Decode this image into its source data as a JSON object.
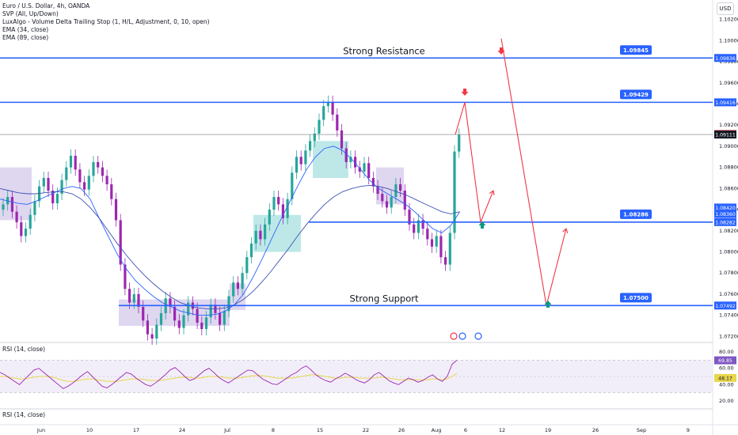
{
  "legend": {
    "symbol": "Euro / U.S. Dollar, 4h, OANDA",
    "ind1": "SVP (All, Up/Down)",
    "ind2": "LuxAlgo - Volume Delta Trailing Stop (1, H/L, Adjustment, 0, 10, open)",
    "ind3": "EMA (34, close)",
    "ind4": "EMA (89, close)"
  },
  "currency_button": "USD",
  "rsi_legend_top": "RSI (14, close)",
  "rsi_legend_bottom": "RSI (14, close)",
  "colors": {
    "level_line": "#2962ff",
    "projection": "#f23645",
    "up_arrow": "#089981",
    "down_arrow": "#f23645",
    "ema_fast": "#2962ff",
    "ema_slow": "#3f51b5",
    "rsi_line": "#9c27b0",
    "rsi_ma": "#e8d64c",
    "rsi_band": "#ede7f6",
    "candle": "#9c27b0",
    "candle_alt": "#26a69a",
    "box_teal": "#a3dede",
    "box_purple": "#d1c4e9"
  },
  "chart_data": {
    "type": "candlestick",
    "title": "Euro / U.S. Dollar, 4h, OANDA",
    "x_tick_labels": [
      "Jun",
      "10",
      "17",
      "24",
      "Jul",
      "8",
      "15",
      "22",
      "26",
      "Aug",
      "6",
      "12",
      "19",
      "26",
      "Sep",
      "9"
    ],
    "y_tick_labels": [
      "1.10200",
      "1.10000",
      "1.09800",
      "1.09600",
      "1.09400",
      "1.09200",
      "1.09000",
      "1.08800",
      "1.08600",
      "1.08400",
      "1.08200",
      "1.08000",
      "1.07800",
      "1.07600",
      "1.07400",
      "1.07200"
    ],
    "ylim": [
      1.0715,
      1.1025
    ],
    "levels": [
      {
        "label": "Strong Resistance",
        "price": 1.09836,
        "tag": "1.09845"
      },
      {
        "label": "",
        "price": 1.09416,
        "tag": "1.09429"
      },
      {
        "label": "",
        "price": 1.08282,
        "tag": "1.08286"
      },
      {
        "label": "Strong Support",
        "price": 1.07492,
        "tag": "1.07500"
      }
    ],
    "axis_badges": [
      {
        "text": "1.09836",
        "price": 1.09836
      },
      {
        "text": "1.09416",
        "price": 1.09416
      },
      {
        "text": "1.09116",
        "price": 1.09116
      },
      {
        "text": "1.09111",
        "price": 1.09111
      },
      {
        "text": "1.08420",
        "price": 1.0842
      },
      {
        "text": "1.08360",
        "price": 1.0836
      },
      {
        "text": "1.08282",
        "price": 1.08282
      },
      {
        "text": "1.07492",
        "price": 1.07492
      }
    ],
    "candles_close": [
      1.0845,
      1.0852,
      1.0838,
      1.0828,
      1.0815,
      1.0822,
      1.0835,
      1.0848,
      1.0862,
      1.087,
      1.0858,
      1.0846,
      1.0855,
      1.0868,
      1.088,
      1.0891,
      1.0878,
      1.0866,
      1.0859,
      1.0872,
      1.0885,
      1.088,
      1.0872,
      1.0864,
      1.085,
      1.083,
      1.0788,
      1.0765,
      1.0752,
      1.076,
      1.0748,
      1.0735,
      1.0722,
      1.0718,
      1.0731,
      1.0742,
      1.0756,
      1.0748,
      1.0735,
      1.0728,
      1.074,
      1.0752,
      1.0746,
      1.0733,
      1.0727,
      1.0738,
      1.075,
      1.0742,
      1.0731,
      1.0744,
      1.0758,
      1.0771,
      1.0765,
      1.078,
      1.0795,
      1.0808,
      1.082,
      1.0812,
      1.0826,
      1.084,
      1.0852,
      1.0845,
      1.0832,
      1.085,
      1.0875,
      1.089,
      1.0883,
      1.0896,
      1.0905,
      1.0912,
      1.0925,
      1.0938,
      1.0942,
      1.093,
      1.0915,
      1.0898,
      1.0885,
      1.089,
      1.088,
      1.0876,
      1.0884,
      1.087,
      1.0862,
      1.0855,
      1.0848,
      1.0842,
      1.0852,
      1.0864,
      1.0858,
      1.084,
      1.0826,
      1.0818,
      1.083,
      1.0822,
      1.0812,
      1.0805,
      1.0815,
      1.0795,
      1.0788,
      1.0818,
      1.0895,
      1.0911
    ],
    "candles_x_start": 0,
    "candles_x_step": 5.7,
    "ema_fast": [
      1.085,
      1.0848,
      1.0846,
      1.0845,
      1.0848,
      1.0852,
      1.0856,
      1.086,
      1.0862,
      1.086,
      1.085,
      1.0832,
      1.0815,
      1.0798,
      1.0784,
      1.0773,
      1.0765,
      1.0758,
      1.0752,
      1.0748,
      1.0744,
      1.0742,
      1.074,
      1.074,
      1.0741,
      1.0744,
      1.075,
      1.076,
      1.0775,
      1.0792,
      1.081,
      1.0828,
      1.0845,
      1.0862,
      1.0878,
      1.089,
      1.0898,
      1.09,
      1.0896,
      1.0888,
      1.0878,
      1.0868,
      1.086,
      1.0855,
      1.085,
      1.0845,
      1.0838,
      1.083,
      1.0822,
      1.0818,
      1.0825,
      1.0838
    ],
    "ema_slow": [
      1.086,
      1.0858,
      1.0856,
      1.0855,
      1.0855,
      1.0856,
      1.0857,
      1.0857,
      1.0855,
      1.085,
      1.0842,
      1.0832,
      1.082,
      1.0808,
      1.0797,
      1.0787,
      1.0778,
      1.077,
      1.0763,
      1.0757,
      1.0752,
      1.0749,
      1.0747,
      1.0746,
      1.0746,
      1.0747,
      1.075,
      1.0755,
      1.0762,
      1.0771,
      1.0781,
      1.0792,
      1.0803,
      1.0815,
      1.0826,
      1.0836,
      1.0845,
      1.0852,
      1.0857,
      1.086,
      1.0862,
      1.0863,
      1.0862,
      1.086,
      1.0857,
      1.0854,
      1.085,
      1.0846,
      1.0842,
      1.0838,
      1.0836,
      1.0838
    ],
    "projections": [
      {
        "path": [
          [
            1.09111,
            0
          ],
          [
            1.09416,
            1
          ],
          [
            1.08282,
            2
          ],
          [
            1.0858,
            3
          ]
        ]
      },
      {
        "path": [
          [
            1.1002,
            0
          ],
          [
            1.07492,
            1
          ],
          [
            1.0822,
            2
          ]
        ]
      }
    ],
    "rsi": {
      "y_tick_labels": [
        "80.00",
        "60.00",
        "40.00",
        "20.00"
      ],
      "badges": [
        "69.85",
        "48.17"
      ],
      "ylim": [
        15,
        85
      ],
      "values": [
        55,
        52,
        48,
        44,
        40,
        46,
        52,
        58,
        60,
        55,
        50,
        45,
        40,
        35,
        38,
        42,
        47,
        52,
        56,
        50,
        44,
        38,
        36,
        40,
        45,
        50,
        55,
        53,
        48,
        44,
        40,
        38,
        42,
        47,
        52,
        58,
        61,
        56,
        50,
        45,
        47,
        52,
        57,
        60,
        55,
        49,
        45,
        42,
        46,
        50,
        54,
        58,
        57,
        52,
        47,
        44,
        41,
        40,
        44,
        48,
        52,
        55,
        60,
        63,
        58,
        52,
        48,
        45,
        43,
        47,
        50,
        54,
        51,
        47,
        44,
        42,
        46,
        52,
        55,
        50,
        45,
        42,
        40,
        44,
        48,
        46,
        43,
        45,
        49,
        52,
        47,
        44,
        50,
        65,
        70
      ],
      "ma": [
        50,
        50,
        49,
        48,
        47,
        47,
        48,
        49,
        50,
        50,
        50,
        49,
        47,
        45,
        44,
        44,
        45,
        46,
        47,
        47,
        46,
        45,
        44,
        44,
        44,
        45,
        46,
        47,
        47,
        47,
        46,
        45,
        45,
        45,
        46,
        47,
        48,
        49,
        49,
        49,
        48,
        48,
        49,
        50,
        50,
        50,
        49,
        48,
        48,
        48,
        49,
        50,
        51,
        51,
        51,
        50,
        49,
        48,
        48,
        48,
        48,
        49,
        50,
        51,
        52,
        52,
        51,
        50,
        49,
        48,
        48,
        49,
        49,
        49,
        48,
        48,
        48,
        48,
        49,
        49,
        48,
        47,
        46,
        46,
        46,
        46,
        46,
        46,
        46,
        47,
        47,
        46,
        47,
        50,
        54
      ]
    }
  }
}
